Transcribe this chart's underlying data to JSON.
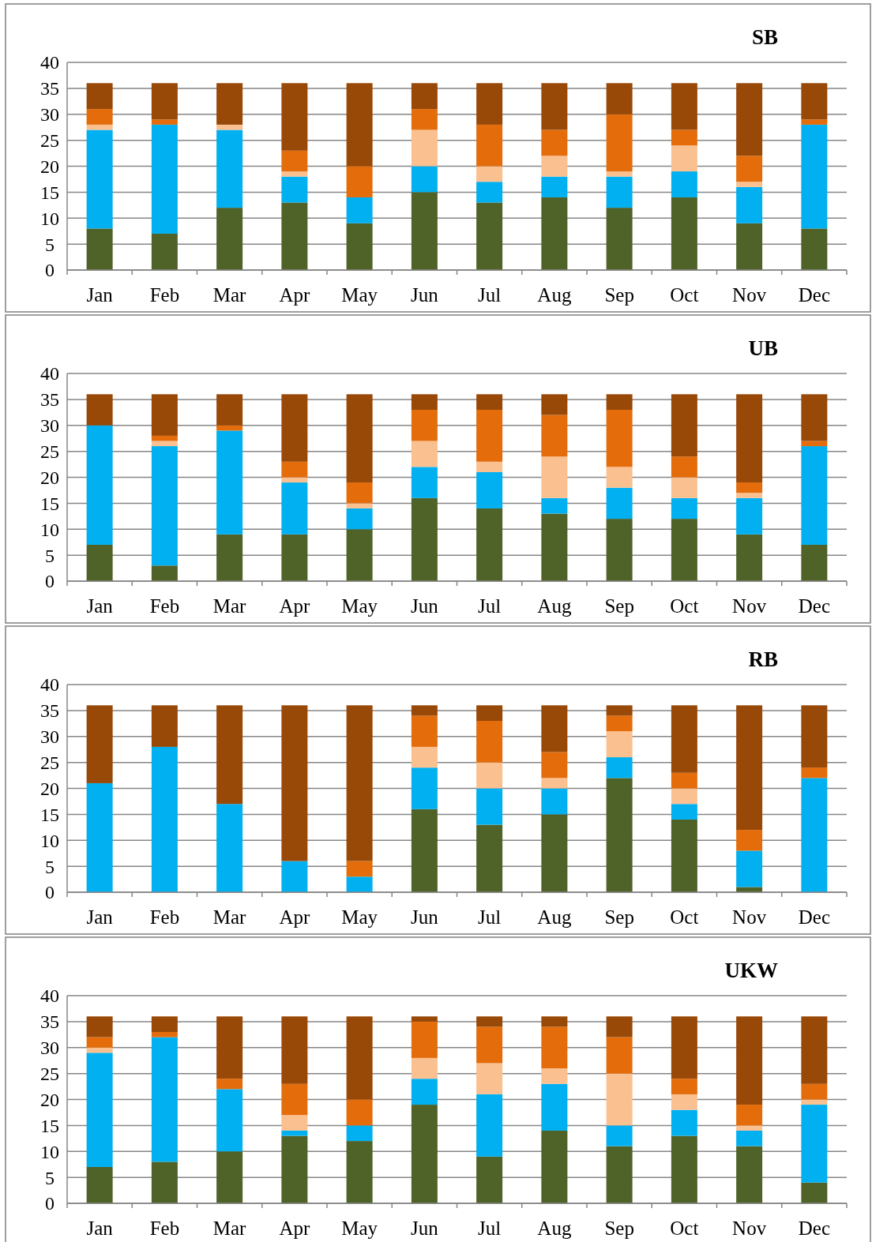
{
  "chart_data": [
    {
      "type": "bar",
      "title": "SB",
      "stacked": true,
      "grid": "y",
      "ylim": [
        0,
        40
      ],
      "yticks": [
        0,
        5,
        10,
        15,
        20,
        25,
        30,
        35,
        40
      ],
      "categories": [
        "Jan",
        "Feb",
        "Mar",
        "Apr",
        "May",
        "Jun",
        "Jul",
        "Aug",
        "Sep",
        "Oct",
        "Nov",
        "Dec"
      ],
      "series": [
        {
          "color": "#4f6228",
          "values": [
            8,
            7,
            12,
            13,
            9,
            15,
            13,
            14,
            12,
            14,
            9,
            8
          ]
        },
        {
          "color": "#00b0f0",
          "values": [
            19,
            21,
            15,
            5,
            5,
            5,
            4,
            4,
            6,
            5,
            7,
            20
          ]
        },
        {
          "color": "#fac090",
          "values": [
            1,
            0,
            1,
            1,
            0,
            7,
            3,
            4,
            1,
            5,
            1,
            0
          ]
        },
        {
          "color": "#e46c0a",
          "values": [
            3,
            1,
            0,
            4,
            6,
            4,
            8,
            5,
            11,
            3,
            5,
            1
          ]
        },
        {
          "color": "#984807",
          "values": [
            5,
            7,
            8,
            13,
            16,
            5,
            8,
            9,
            6,
            9,
            14,
            7
          ]
        }
      ]
    },
    {
      "type": "bar",
      "title": "UB",
      "stacked": true,
      "grid": "y",
      "ylim": [
        0,
        40
      ],
      "yticks": [
        0,
        5,
        10,
        15,
        20,
        25,
        30,
        35,
        40
      ],
      "categories": [
        "Jan",
        "Feb",
        "Mar",
        "Apr",
        "May",
        "Jun",
        "Jul",
        "Aug",
        "Sep",
        "Oct",
        "Nov",
        "Dec"
      ],
      "series": [
        {
          "color": "#4f6228",
          "values": [
            7,
            3,
            9,
            9,
            10,
            16,
            14,
            13,
            12,
            12,
            9,
            7
          ]
        },
        {
          "color": "#00b0f0",
          "values": [
            23,
            23,
            20,
            10,
            4,
            6,
            7,
            3,
            6,
            4,
            7,
            19
          ]
        },
        {
          "color": "#fac090",
          "values": [
            0,
            1,
            0,
            1,
            1,
            5,
            2,
            8,
            4,
            4,
            1,
            0
          ]
        },
        {
          "color": "#e46c0a",
          "values": [
            0,
            1,
            1,
            3,
            4,
            6,
            10,
            8,
            11,
            4,
            2,
            1
          ]
        },
        {
          "color": "#984807",
          "values": [
            6,
            8,
            6,
            13,
            17,
            3,
            3,
            4,
            3,
            12,
            17,
            9
          ]
        }
      ]
    },
    {
      "type": "bar",
      "title": "RB",
      "stacked": true,
      "grid": "y",
      "ylim": [
        0,
        40
      ],
      "yticks": [
        0,
        5,
        10,
        15,
        20,
        25,
        30,
        35,
        40
      ],
      "categories": [
        "Jan",
        "Feb",
        "Mar",
        "Apr",
        "May",
        "Jun",
        "Jul",
        "Aug",
        "Sep",
        "Oct",
        "Nov",
        "Dec"
      ],
      "series": [
        {
          "color": "#4f6228",
          "values": [
            0,
            0,
            0,
            0,
            0,
            16,
            13,
            15,
            22,
            14,
            1,
            0
          ]
        },
        {
          "color": "#00b0f0",
          "values": [
            21,
            28,
            17,
            6,
            3,
            8,
            7,
            5,
            4,
            3,
            7,
            22
          ]
        },
        {
          "color": "#fac090",
          "values": [
            0,
            0,
            0,
            0,
            0,
            4,
            5,
            2,
            5,
            3,
            0,
            0
          ]
        },
        {
          "color": "#e46c0a",
          "values": [
            0,
            0,
            0,
            0,
            3,
            6,
            8,
            5,
            3,
            3,
            4,
            2
          ]
        },
        {
          "color": "#984807",
          "values": [
            15,
            8,
            19,
            30,
            30,
            2,
            3,
            9,
            2,
            13,
            24,
            12
          ]
        }
      ]
    },
    {
      "type": "bar",
      "title": "UKW",
      "stacked": true,
      "grid": "y",
      "ylim": [
        0,
        40
      ],
      "yticks": [
        0,
        5,
        10,
        15,
        20,
        25,
        30,
        35,
        40
      ],
      "categories": [
        "Jan",
        "Feb",
        "Mar",
        "Apr",
        "May",
        "Jun",
        "Jul",
        "Aug",
        "Sep",
        "Oct",
        "Nov",
        "Dec"
      ],
      "series": [
        {
          "color": "#4f6228",
          "values": [
            7,
            8,
            10,
            13,
            12,
            19,
            9,
            14,
            11,
            13,
            11,
            4
          ]
        },
        {
          "color": "#00b0f0",
          "values": [
            22,
            24,
            12,
            1,
            3,
            5,
            12,
            9,
            4,
            5,
            3,
            15
          ]
        },
        {
          "color": "#fac090",
          "values": [
            1,
            0,
            0,
            3,
            0,
            4,
            6,
            3,
            10,
            3,
            1,
            1
          ]
        },
        {
          "color": "#e46c0a",
          "values": [
            2,
            1,
            2,
            6,
            5,
            7,
            7,
            8,
            7,
            3,
            4,
            3
          ]
        },
        {
          "color": "#984807",
          "values": [
            4,
            3,
            12,
            13,
            16,
            1,
            2,
            2,
            4,
            12,
            17,
            13
          ]
        }
      ]
    }
  ]
}
